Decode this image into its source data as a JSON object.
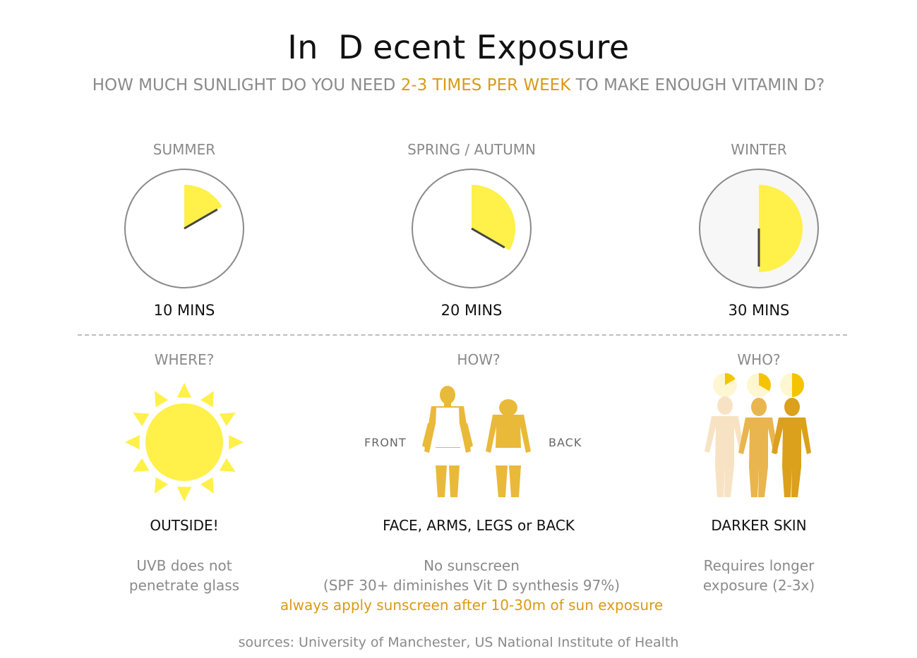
{
  "title": {
    "pre": "In ",
    "letter": "D",
    "post": "ecent Exposure"
  },
  "subtitle": {
    "pre": "HOW MUCH SUNLIGHT DO YOU NEED ",
    "highlight": "2-3 TIMES PER WEEK",
    "post": " TO MAKE ENOUGH VITAMIN D?"
  },
  "seasons": [
    {
      "name": "SUMMER",
      "minutes_label": "10 MINS",
      "minutes": 10
    },
    {
      "name": "SPRING / AUTUMN",
      "minutes_label": "20 MINS",
      "minutes": 20
    },
    {
      "name": "WINTER",
      "minutes_label": "30 MINS",
      "minutes": 30
    }
  ],
  "where": {
    "heading": "WHERE?",
    "answer": "OUTSIDE!",
    "desc_line1": "UVB does not",
    "desc_line2": "penetrate glass"
  },
  "how": {
    "heading": "HOW?",
    "front": "FRONT",
    "back": "BACK",
    "answer": "FACE, ARMS, LEGS or BACK",
    "desc_line1": "No sunscreen",
    "desc_line2": "(SPF 30+ diminishes Vit D synthesis 97%)",
    "warning": "always apply sunscreen after 10-30m of sun exposure"
  },
  "who": {
    "heading": "WHO?",
    "answer": "DARKER SKIN",
    "desc_line1": "Requires longer",
    "desc_line2": "exposure (2-3x)"
  },
  "sources": "sources: University of Manchester, US National Institute of Health",
  "colors": {
    "sun_yellow": "#fff04a",
    "accent_orange": "#d89a14",
    "body_gold": "#e9b93a"
  }
}
